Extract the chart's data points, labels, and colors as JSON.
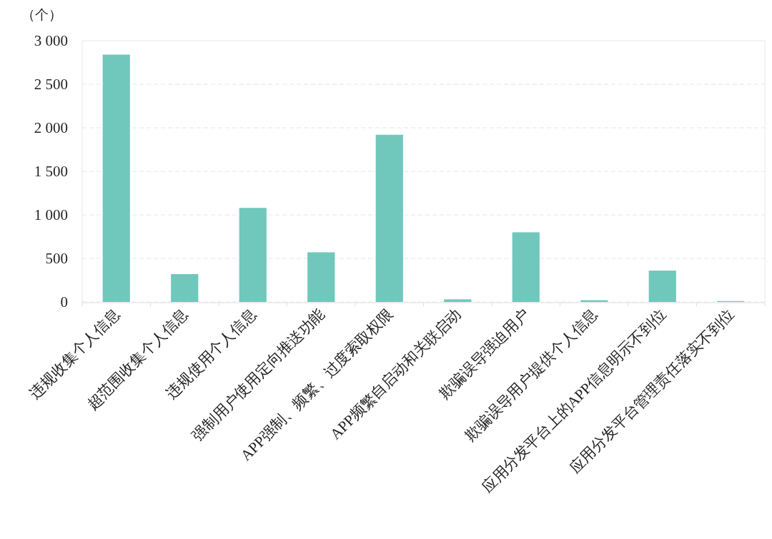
{
  "chart_data": {
    "type": "bar",
    "ylabel": "（个）",
    "categories": [
      "违规收集个人信息",
      "超范围收集个人信息",
      "违规使用个人信息",
      "强制用户使用定向推送功能",
      "APP强制、频繁、过度索取权限",
      "APP频繁自启动和关联启动",
      "欺骗误导强迫用户",
      "欺骗误导用户提供个人信息",
      "应用分发平台上的APP信息明示不到位",
      "应用分发平台管理责任落实不到位"
    ],
    "values": [
      2840,
      320,
      1080,
      570,
      1920,
      30,
      800,
      20,
      360,
      10
    ],
    "color": "#6fc8bb",
    "ylim": [
      0,
      3000
    ],
    "yticks": [
      {
        "value": 0,
        "label": "0"
      },
      {
        "value": 500,
        "label": "500"
      },
      {
        "value": 1000,
        "label": "1 000"
      },
      {
        "value": 1500,
        "label": "1 500"
      },
      {
        "value": 2000,
        "label": "2 000"
      },
      {
        "value": 2500,
        "label": "2 500"
      },
      {
        "value": 3000,
        "label": "3 000"
      }
    ],
    "grid": "y"
  }
}
